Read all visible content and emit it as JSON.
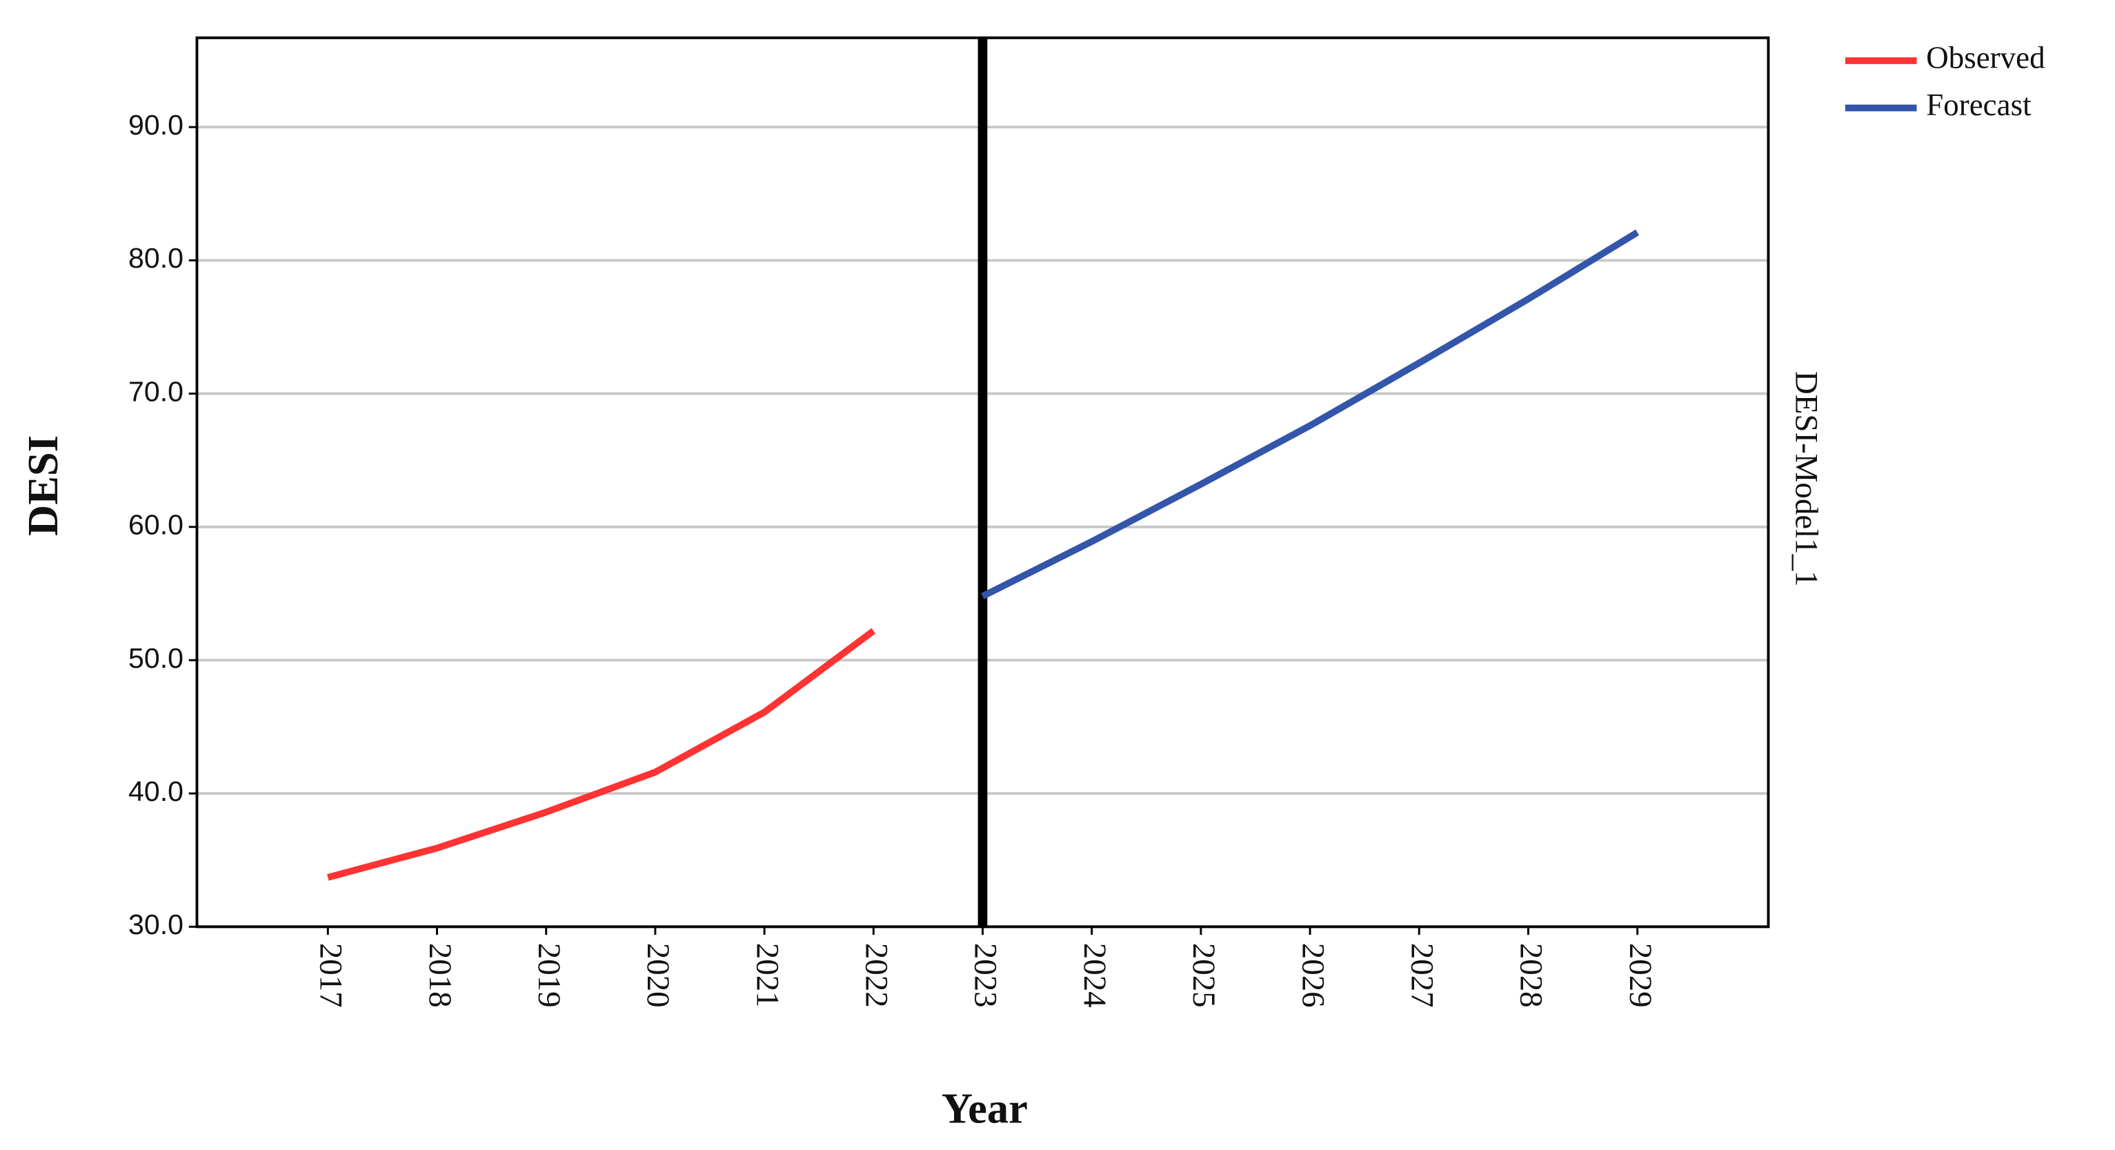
{
  "chart_data": {
    "type": "line",
    "y_label": "DESI",
    "x_label": "Year",
    "right_label": "DESI-Model1_1",
    "categories": [
      "2017",
      "2018",
      "2019",
      "2020",
      "2021",
      "2022",
      "2023",
      "2024",
      "2025",
      "2026",
      "2027",
      "2028",
      "2029"
    ],
    "series": [
      {
        "name": "Observed",
        "color": "#ff3333",
        "values": [
          33.7,
          35.9,
          38.6,
          41.6,
          46.1,
          52.2,
          null,
          null,
          null,
          null,
          null,
          null,
          null
        ]
      },
      {
        "name": "Forecast",
        "color": "#3355aa",
        "values": [
          null,
          null,
          null,
          null,
          null,
          null,
          54.8,
          58.9,
          63.2,
          67.6,
          72.3,
          77.1,
          82.1
        ]
      }
    ],
    "vline_at": "2023",
    "ylim": [
      30,
      96.7
    ],
    "yticks": [
      {
        "value": 30,
        "label": "30.0"
      },
      {
        "value": 40,
        "label": "40.0"
      },
      {
        "value": 50,
        "label": "50.0"
      },
      {
        "value": 60,
        "label": "60.0"
      },
      {
        "value": 70,
        "label": "70.0"
      },
      {
        "value": 80,
        "label": "80.0"
      },
      {
        "value": 90,
        "label": "90.0"
      }
    ],
    "grid": true,
    "legend": "outside-right-top"
  }
}
